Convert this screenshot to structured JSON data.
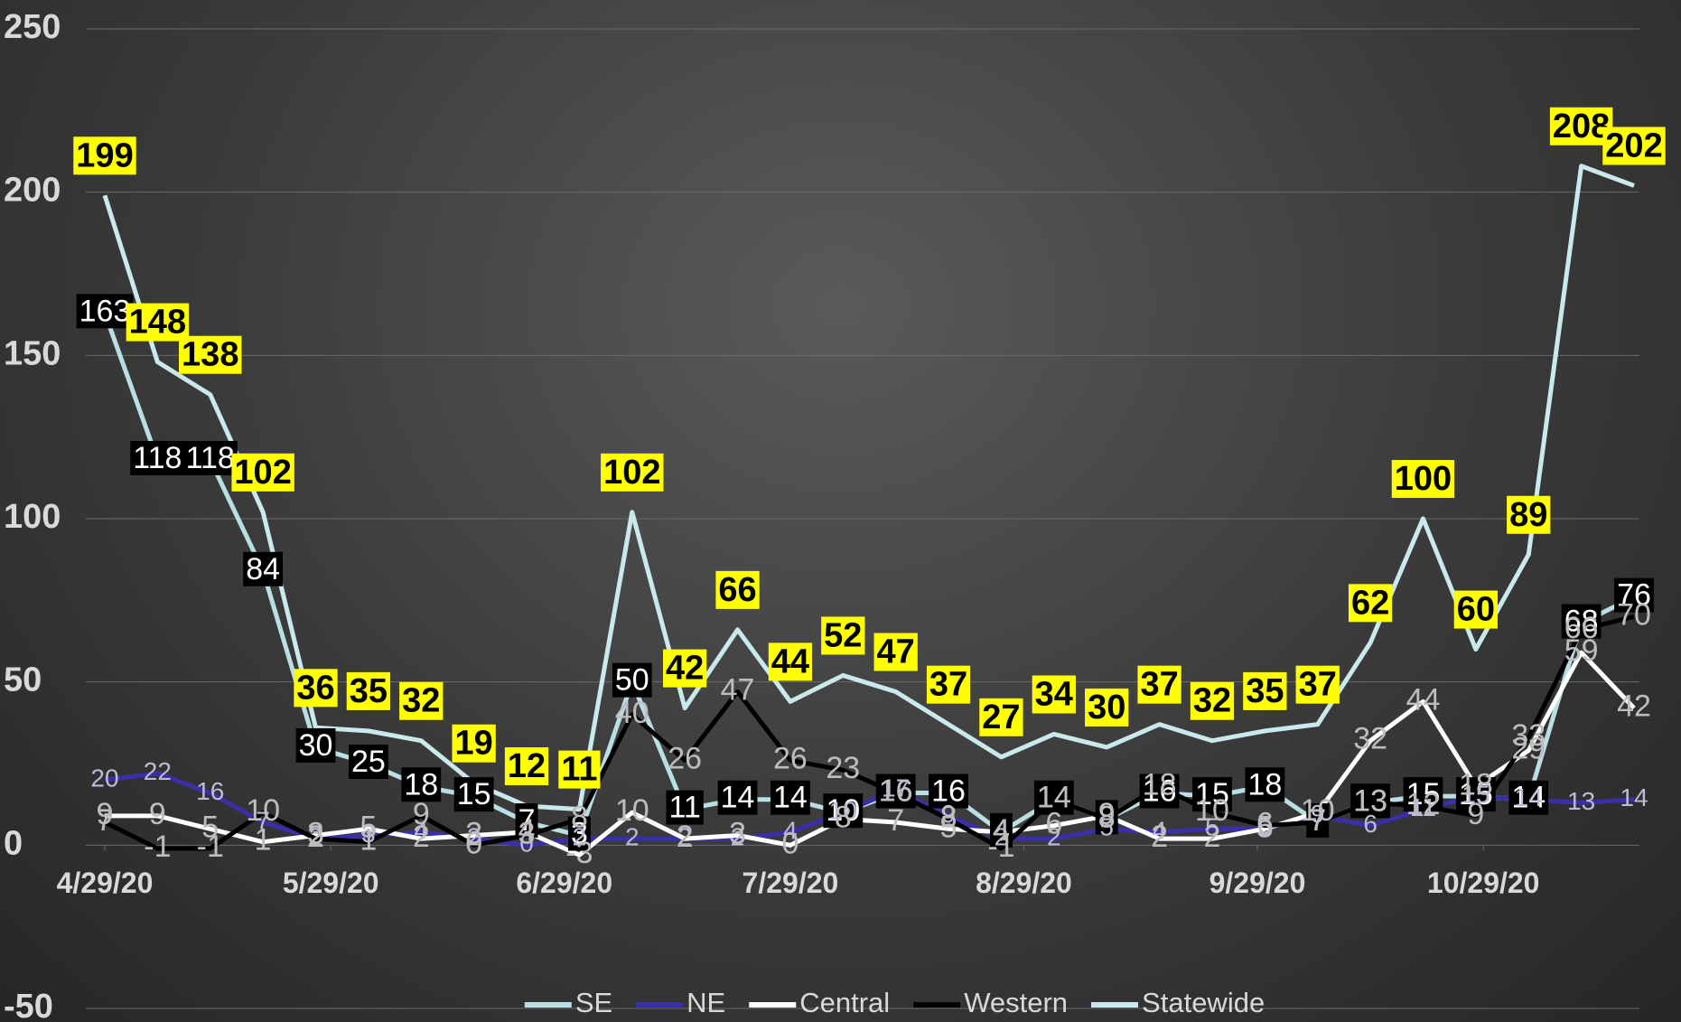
{
  "chart_data": {
    "type": "line",
    "x": [
      "2020-04-29",
      "2020-05-06",
      "2020-05-13",
      "2020-05-20",
      "2020-05-27",
      "2020-06-03",
      "2020-06-10",
      "2020-06-17",
      "2020-06-24",
      "2020-07-01",
      "2020-07-08",
      "2020-07-15",
      "2020-07-22",
      "2020-07-29",
      "2020-08-05",
      "2020-08-12",
      "2020-08-19",
      "2020-08-26",
      "2020-09-02",
      "2020-09-09",
      "2020-09-16",
      "2020-09-23",
      "2020-09-30",
      "2020-10-07",
      "2020-10-14",
      "2020-10-21",
      "2020-10-28",
      "2020-11-04",
      "2020-11-11",
      "2020-11-18"
    ],
    "series": [
      {
        "name": "SE",
        "color": "#b9dfe4",
        "values": [
          163,
          118,
          118,
          84,
          30,
          25,
          18,
          15,
          7,
          3,
          50,
          11,
          14,
          14,
          10,
          16,
          16,
          4,
          14,
          8,
          16,
          15,
          18,
          7,
          13,
          15,
          15,
          14,
          68,
          76
        ]
      },
      {
        "name": "NE",
        "color": "#3a2fa8",
        "values": [
          20,
          22,
          16,
          7,
          2,
          3,
          4,
          2,
          0,
          2,
          2,
          2,
          2,
          4,
          10,
          17,
          9,
          2,
          2,
          5,
          4,
          5,
          5,
          9,
          6,
          11,
          15,
          14,
          13,
          14
        ]
      },
      {
        "name": "Central",
        "color": "#ffffff",
        "values": [
          9,
          9,
          5,
          1,
          3,
          5,
          2,
          3,
          4,
          -3,
          10,
          2,
          3,
          0,
          8,
          7,
          5,
          4,
          6,
          9,
          2,
          2,
          5,
          10,
          32,
          44,
          18,
          29,
          59,
          42
        ]
      },
      {
        "name": "Western",
        "color": "#000000",
        "values": [
          7,
          -1,
          -1,
          10,
          2,
          1,
          9,
          0,
          3,
          8,
          40,
          26,
          47,
          26,
          23,
          16,
          8,
          -1,
          14,
          8,
          18,
          10,
          6,
          7,
          13,
          12,
          9,
          33,
          66,
          70
        ]
      },
      {
        "name": "Statewide",
        "color": "#c9e9ec",
        "values": [
          199,
          148,
          138,
          102,
          36,
          35,
          32,
          19,
          12,
          11,
          102,
          42,
          66,
          44,
          52,
          47,
          37,
          27,
          34,
          30,
          37,
          32,
          35,
          37,
          62,
          100,
          60,
          89,
          208,
          202
        ]
      }
    ],
    "xlim": [
      "2020-04-29",
      "2020-11-18"
    ],
    "xticks": [
      {
        "value": "2020-04-29",
        "label": "4/29/20"
      },
      {
        "value": "2020-05-29",
        "label": "5/29/20"
      },
      {
        "value": "2020-06-29",
        "label": "6/29/20"
      },
      {
        "value": "2020-07-29",
        "label": "7/29/20"
      },
      {
        "value": "2020-08-29",
        "label": "8/29/20"
      },
      {
        "value": "2020-09-29",
        "label": "9/29/20"
      },
      {
        "value": "2020-10-29",
        "label": "10/29/20"
      }
    ],
    "ylim": [
      -50,
      250
    ],
    "yticks": [
      -50,
      0,
      50,
      100,
      150,
      200,
      250
    ],
    "grid": true,
    "legend": "bottom"
  }
}
